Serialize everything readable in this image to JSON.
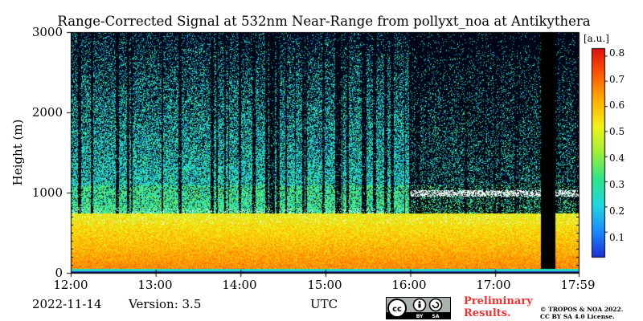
{
  "title": "Range-Corrected Signal at 532nm Near-Range from pollyxt_noa at Antikythera",
  "date": "2022-11-14",
  "version": "Version: 3.5",
  "xlabel_bottom": "UTC",
  "preliminary": [
    "Preliminary",
    "Results."
  ],
  "copyright": [
    "© TROPOS & NOA 2022.",
    "CC BY SA 4.0 License."
  ],
  "cc_badge": {
    "cc": "cc",
    "by": "BY",
    "sa": "SA"
  },
  "chart_data": {
    "type": "heatmap",
    "title": "Range-Corrected Signal at 532nm Near-Range from pollyxt_noa at Antikythera",
    "xlabel": "UTC",
    "ylabel": "Height (m)",
    "x_range": [
      "12:00",
      "17:59"
    ],
    "y_range": [
      0,
      3000
    ],
    "x_ticks": [
      "12:00",
      "13:00",
      "14:00",
      "15:00",
      "16:00",
      "17:00",
      "17:59"
    ],
    "y_ticks": [
      0,
      1000,
      2000,
      3000
    ],
    "colorbar": {
      "label": "[a.u.]",
      "range": [
        0,
        0.83
      ],
      "ticks": [
        0.1,
        0.2,
        0.3,
        0.4,
        0.5,
        0.6,
        0.7,
        0.8
      ],
      "colormap": [
        "#1a2fd6",
        "#1a8cff",
        "#22d7e0",
        "#2ee58a",
        "#9ef03a",
        "#f2f21a",
        "#ffb000",
        "#ff5a00",
        "#e01010"
      ]
    },
    "features": {
      "aerosol_layer_top_m": 750,
      "cloud_base_heights_m": [
        700,
        950,
        1000
      ],
      "signal_gap_utc": [
        "17:32",
        "17:42"
      ]
    },
    "grid": false
  }
}
